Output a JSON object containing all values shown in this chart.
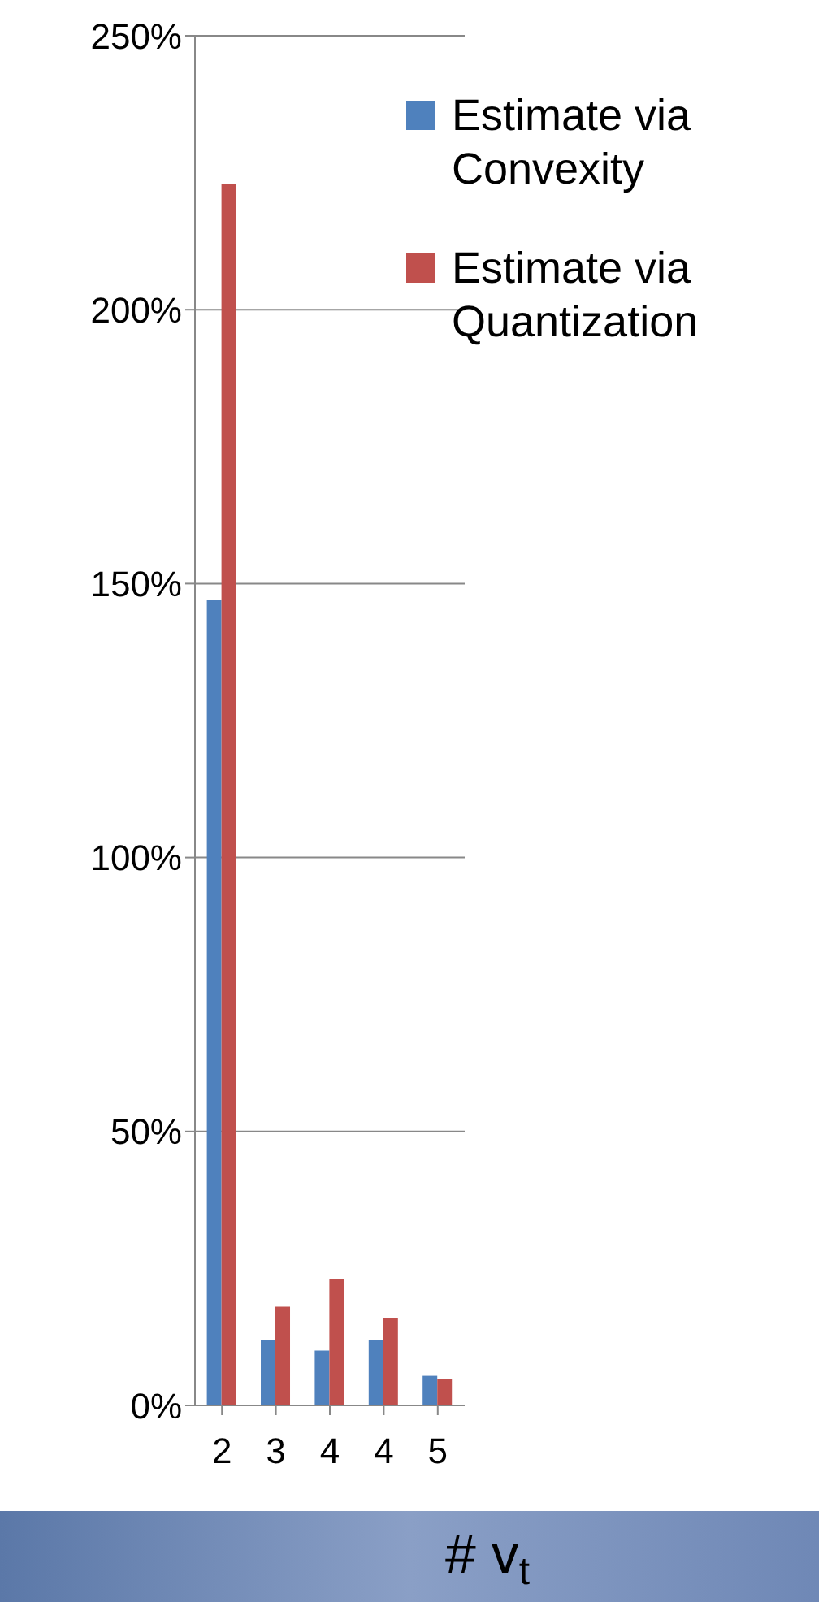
{
  "chart_data": {
    "type": "bar",
    "xlabel": "# v$_{t}$",
    "categories": [
      "2",
      "3",
      "4",
      "4",
      "5"
    ],
    "series": [
      {
        "name": "Estimate via Convexity",
        "color": "#4f81bd",
        "values": [
          147,
          12,
          10,
          12,
          5.4
        ]
      },
      {
        "name": "Estimate via Quantization",
        "color": "#c0504d",
        "values": [
          223,
          18,
          23,
          16,
          4.8
        ]
      }
    ],
    "ylim": [
      0,
      250
    ],
    "yticks": [
      {
        "value": 0,
        "label": "0%"
      },
      {
        "value": 50,
        "label": "50%"
      },
      {
        "value": 100,
        "label": "100%"
      },
      {
        "value": 150,
        "label": "150%"
      },
      {
        "value": 200,
        "label": "200%"
      },
      {
        "value": 250,
        "label": "250%"
      }
    ],
    "grid": "y",
    "legend": "top right"
  }
}
